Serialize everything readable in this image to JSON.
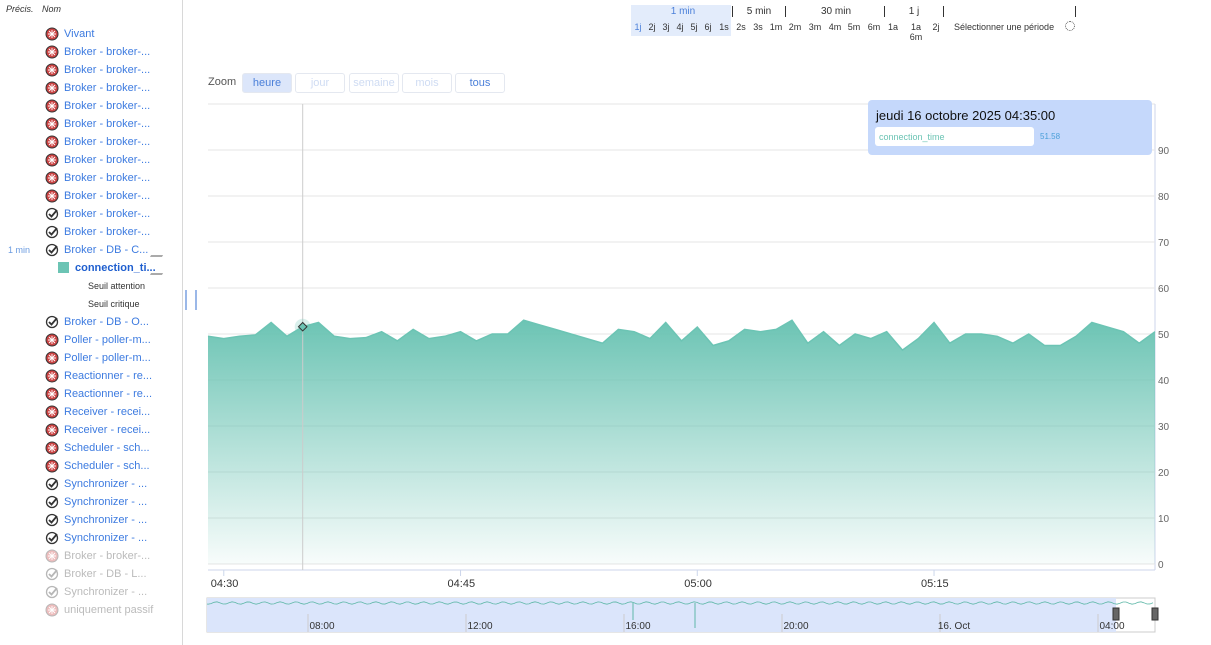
{
  "sidebar": {
    "headers": [
      "Précis.",
      "Nom"
    ],
    "items": [
      {
        "name": "Vivant",
        "status": "error"
      },
      {
        "name": "Broker - broker-...",
        "status": "error"
      },
      {
        "name": "Broker - broker-...",
        "status": "error"
      },
      {
        "name": "Broker - broker-...",
        "status": "error"
      },
      {
        "name": "Broker - broker-...",
        "status": "error"
      },
      {
        "name": "Broker - broker-...",
        "status": "error"
      },
      {
        "name": "Broker - broker-...",
        "status": "error"
      },
      {
        "name": "Broker - broker-...",
        "status": "error"
      },
      {
        "name": "Broker - broker-...",
        "status": "error"
      },
      {
        "name": "Broker - broker-...",
        "status": "error"
      },
      {
        "name": "Broker - broker-...",
        "status": "ok"
      },
      {
        "name": "Broker - broker-...",
        "status": "ok"
      },
      {
        "name": "Broker - DB - C...",
        "status": "ok",
        "precision": "1 min",
        "editable": true
      },
      {
        "name": "connection_ti...",
        "status": "series",
        "editable": true
      },
      {
        "name": "Seuil attention",
        "status": "threshold"
      },
      {
        "name": "Seuil critique",
        "status": "threshold"
      },
      {
        "name": "Broker - DB - O...",
        "status": "ok"
      },
      {
        "name": "Poller - poller-m...",
        "status": "error"
      },
      {
        "name": "Poller - poller-m...",
        "status": "error"
      },
      {
        "name": "Reactionner - re...",
        "status": "error"
      },
      {
        "name": "Reactionner - re...",
        "status": "error"
      },
      {
        "name": "Receiver - recei...",
        "status": "error"
      },
      {
        "name": "Receiver - recei...",
        "status": "error"
      },
      {
        "name": "Scheduler - sch...",
        "status": "error"
      },
      {
        "name": "Scheduler - sch...",
        "status": "error"
      },
      {
        "name": "Synchronizer - ...",
        "status": "ok"
      },
      {
        "name": "Synchronizer - ...",
        "status": "ok"
      },
      {
        "name": "Synchronizer - ...",
        "status": "ok"
      },
      {
        "name": "Synchronizer - ...",
        "status": "ok"
      },
      {
        "name": "Broker - broker-...",
        "status": "error",
        "inactive": true
      },
      {
        "name": "Broker - DB - L...",
        "status": "ok",
        "inactive": true
      },
      {
        "name": "Synchronizer - ...",
        "status": "ok",
        "inactive": true
      },
      {
        "name": "uniquement passif",
        "status": "error",
        "inactive": true
      }
    ]
  },
  "period_selector": {
    "groups": [
      "1 min",
      "5 min",
      "30 min",
      "1 j"
    ],
    "options": [
      "1j",
      "2j",
      "3j",
      "4j",
      "5j",
      "6j",
      "1s",
      "2s",
      "3s",
      "1m",
      "2m",
      "3m",
      "4m",
      "5m",
      "6m",
      "1a",
      "1a 6m",
      "2j"
    ],
    "custom": "Sélectionner une période"
  },
  "zoom": {
    "label": "Zoom",
    "buttons": [
      {
        "text": "heure",
        "state": "active"
      },
      {
        "text": "jour",
        "state": "disabled"
      },
      {
        "text": "semaine",
        "state": "disabled"
      },
      {
        "text": "mois",
        "state": "disabled"
      },
      {
        "text": "tous",
        "state": "enabled"
      }
    ]
  },
  "chart_data": {
    "type": "area",
    "x": [
      "04:29",
      "04:30",
      "04:31",
      "04:32",
      "04:33",
      "04:34",
      "04:35",
      "04:36",
      "04:37",
      "04:38",
      "04:39",
      "04:40",
      "04:41",
      "04:42",
      "04:43",
      "04:44",
      "04:45",
      "04:46",
      "04:47",
      "04:48",
      "04:49",
      "04:50",
      "04:51",
      "04:52",
      "04:53",
      "04:54",
      "04:55",
      "04:56",
      "04:57",
      "04:58",
      "04:59",
      "05:00",
      "05:01",
      "05:02",
      "05:03",
      "05:04",
      "05:05",
      "05:06",
      "05:07",
      "05:08",
      "05:09",
      "05:10",
      "05:11",
      "05:12",
      "05:13",
      "05:14",
      "05:15",
      "05:16",
      "05:17",
      "05:18",
      "05:19",
      "05:20",
      "05:21",
      "05:22",
      "05:23",
      "05:24",
      "05:25",
      "05:26",
      "05:27",
      "05:28",
      "05:29"
    ],
    "series": [
      {
        "name": "connection_time",
        "color": "#6cc4b4",
        "values": [
          49.5,
          49,
          49.5,
          49.8,
          52.5,
          49.5,
          51.58,
          52.5,
          49.5,
          49,
          49.2,
          50.5,
          48.5,
          51,
          49,
          49.5,
          50.5,
          48.5,
          50,
          50,
          53,
          52,
          51,
          50,
          49,
          48,
          51,
          50.5,
          49,
          52.5,
          48.5,
          51.5,
          47.5,
          48.5,
          51,
          50.5,
          51,
          53,
          48,
          50.5,
          47.5,
          50,
          49,
          50.5,
          46.5,
          49,
          52.5,
          48,
          50,
          50,
          49.5,
          48,
          50,
          47.5,
          47.5,
          49.5,
          52.5,
          51.5,
          50.5,
          48,
          50.5
        ]
      }
    ],
    "xlim": [
      "04:29",
      "05:29"
    ],
    "xticks": [
      "04:30",
      "04:45",
      "05:00",
      "05:15"
    ],
    "ylim": [
      0,
      100
    ],
    "yticks": [
      0,
      10,
      20,
      30,
      40,
      50,
      60,
      70,
      80,
      90
    ],
    "grid": true,
    "tooltip": {
      "title": "jeudi 16 octobre 2025 04:35:00",
      "index": 6
    }
  },
  "navigator": {
    "labels": [
      "08:00",
      "12:00",
      "16:00",
      "20:00",
      "16. Oct",
      "04:00"
    ]
  }
}
